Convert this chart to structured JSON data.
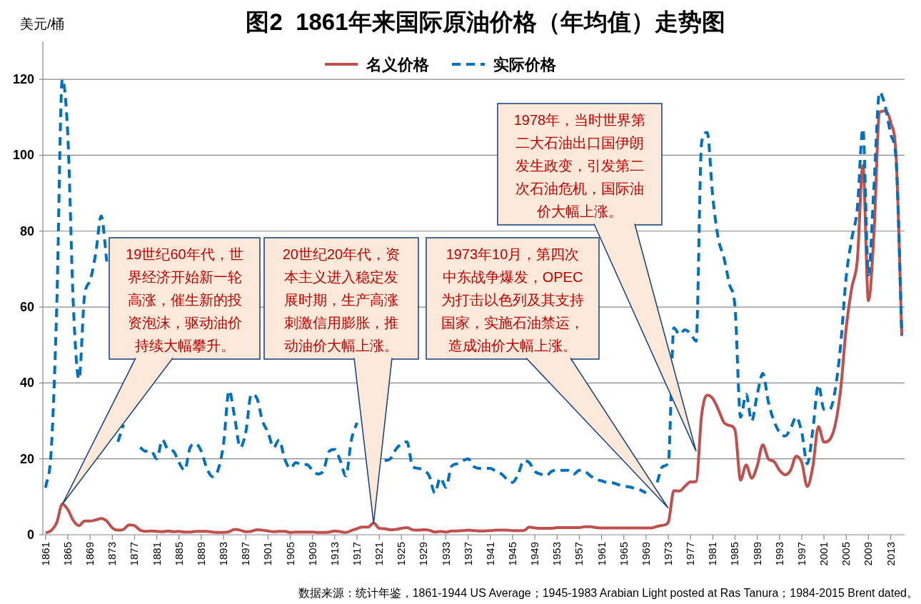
{
  "chart_data": {
    "type": "line",
    "title": "图2  1861年来国际原油价格（年均值）走势图",
    "ylabel": "美元/桶",
    "x": [
      1861,
      1862,
      1863,
      1864,
      1865,
      1866,
      1867,
      1868,
      1869,
      1870,
      1871,
      1872,
      1873,
      1874,
      1875,
      1876,
      1877,
      1878,
      1879,
      1880,
      1881,
      1882,
      1883,
      1884,
      1885,
      1886,
      1887,
      1888,
      1889,
      1890,
      1891,
      1892,
      1893,
      1894,
      1895,
      1896,
      1897,
      1898,
      1899,
      1900,
      1901,
      1902,
      1903,
      1904,
      1905,
      1906,
      1907,
      1908,
      1909,
      1910,
      1911,
      1912,
      1913,
      1914,
      1915,
      1916,
      1917,
      1918,
      1919,
      1920,
      1921,
      1922,
      1923,
      1924,
      1925,
      1926,
      1927,
      1928,
      1929,
      1930,
      1931,
      1932,
      1933,
      1934,
      1935,
      1936,
      1937,
      1938,
      1939,
      1940,
      1941,
      1942,
      1943,
      1944,
      1945,
      1946,
      1947,
      1948,
      1949,
      1950,
      1951,
      1952,
      1953,
      1954,
      1955,
      1956,
      1957,
      1958,
      1959,
      1960,
      1961,
      1962,
      1963,
      1964,
      1965,
      1966,
      1967,
      1968,
      1969,
      1970,
      1971,
      1972,
      1973,
      1974,
      1975,
      1976,
      1977,
      1978,
      1979,
      1980,
      1981,
      1982,
      1983,
      1984,
      1985,
      1986,
      1987,
      1988,
      1989,
      1990,
      1991,
      1992,
      1993,
      1994,
      1995,
      1996,
      1997,
      1998,
      1999,
      2000,
      2001,
      2002,
      2003,
      2004,
      2005,
      2006,
      2007,
      2008,
      2009,
      2010,
      2011,
      2012,
      2013,
      2014,
      2015
    ],
    "series": [
      {
        "name": "名义价格",
        "color": "#c0504d",
        "line_style": "solid",
        "values": [
          0.5,
          1.1,
          3.2,
          8.1,
          6.6,
          3.7,
          2.4,
          3.6,
          3.6,
          3.9,
          4.3,
          3.6,
          1.8,
          1.2,
          1.4,
          2.6,
          2.4,
          1.2,
          0.9,
          1.0,
          0.9,
          0.8,
          1.0,
          0.8,
          0.9,
          0.7,
          0.7,
          0.9,
          0.9,
          0.9,
          0.7,
          0.6,
          0.6,
          0.8,
          1.4,
          1.2,
          0.8,
          0.9,
          1.3,
          1.2,
          1.0,
          0.8,
          0.9,
          0.9,
          0.6,
          0.7,
          0.7,
          0.7,
          0.7,
          0.6,
          0.6,
          0.7,
          1.0,
          0.8,
          0.6,
          1.1,
          1.6,
          2.0,
          2.0,
          3.1,
          1.7,
          1.6,
          1.3,
          1.4,
          1.7,
          1.9,
          1.3,
          1.2,
          1.3,
          1.2,
          0.7,
          0.9,
          0.7,
          1.0,
          1.0,
          1.1,
          1.2,
          1.1,
          1.0,
          1.0,
          1.1,
          1.2,
          1.2,
          1.2,
          1.1,
          1.1,
          1.1,
          2.0,
          1.8,
          1.7,
          1.7,
          1.7,
          1.9,
          1.9,
          1.9,
          1.9,
          1.9,
          2.1,
          2.1,
          1.9,
          1.8,
          1.8,
          1.8,
          1.8,
          1.8,
          1.8,
          1.8,
          1.8,
          1.8,
          1.8,
          2.2,
          2.5,
          3.3,
          11.6,
          11.5,
          12.8,
          13.9,
          14.0,
          31.6,
          36.8,
          35.9,
          33.0,
          29.6,
          28.8,
          27.6,
          14.4,
          18.4,
          14.9,
          18.2,
          23.7,
          20.0,
          19.3,
          17.0,
          15.8,
          17.0,
          20.7,
          19.1,
          12.7,
          18.0,
          28.5,
          24.4,
          25.0,
          28.8,
          38.3,
          54.5,
          65.1,
          72.4,
          97.3,
          61.7,
          79.5,
          111.3,
          111.7,
          108.7,
          99.0,
          52.4
        ]
      },
      {
        "name": "实际价格",
        "color": "#0070c0",
        "line_style": "dashed",
        "values": [
          12.4,
          22,
          60,
          120,
          105,
          60,
          41,
          63,
          67,
          74,
          84,
          72,
          null,
          24.5,
          29,
          null,
          null,
          23,
          22,
          22,
          20,
          25,
          22.5,
          22,
          19,
          17,
          23,
          24,
          22,
          17.5,
          15.3,
          17,
          24,
          38,
          31,
          23,
          27,
          37,
          36,
          30,
          27,
          23,
          25,
          20,
          17.5,
          19,
          18.5,
          18.5,
          17,
          16,
          17,
          22,
          22.5,
          19.5,
          15.5,
          25,
          29.5,
          null,
          null,
          null,
          null,
          19.5,
          20,
          22.5,
          24,
          24.5,
          18,
          17.5,
          17,
          15.5,
          11,
          15,
          12.5,
          18,
          18.7,
          19.5,
          20,
          18,
          17.5,
          17.5,
          17.5,
          16.7,
          16,
          14.6,
          13.8,
          16,
          19.5,
          19,
          16.7,
          16,
          15.5,
          16.7,
          17,
          17,
          17,
          16,
          17,
          16.7,
          15.5,
          14.6,
          14.2,
          13.8,
          13.7,
          13.2,
          12.8,
          12.6,
          12.2,
          11.8,
          11,
          null,
          13.8,
          18,
          19,
          54.5,
          52.8,
          54,
          53,
          51,
          103.5,
          106,
          89,
          78,
          73,
          66,
          60,
          31,
          37,
          30,
          37,
          42.5,
          35,
          30,
          27,
          26,
          28,
          31,
          27,
          18.7,
          27.6,
          39.5,
          33,
          33,
          38,
          50,
          68,
          78,
          86,
          107,
          68.5,
          92,
          116.6,
          113,
          105.6,
          98,
          52.6
        ]
      }
    ],
    "xlim": [
      1860.5,
      2015.5
    ],
    "xticks": [
      1861,
      1865,
      1869,
      1873,
      1877,
      1881,
      1885,
      1889,
      1893,
      1897,
      1901,
      1905,
      1909,
      1913,
      1917,
      1921,
      1925,
      1929,
      1933,
      1937,
      1941,
      1945,
      1949,
      1953,
      1957,
      1961,
      1965,
      1969,
      1973,
      1977,
      1981,
      1985,
      1989,
      1993,
      1997,
      2001,
      2005,
      2009,
      2013
    ],
    "ylim": [
      0,
      130
    ],
    "yticks": [
      0,
      20,
      40,
      60,
      80,
      100,
      120
    ],
    "grid": "y",
    "legend": "top",
    "annotations": [
      {
        "text": "19世纪60年代，世界经济开始新一轮高涨，催生新的投资泡沫，驱动油价持续大幅攀升。",
        "x": 1864,
        "y": 8
      },
      {
        "text": "20世纪20年代，资本主义进入稳定发展时期，生产高涨刺激信用膨胀，推动油价大幅上涨。",
        "x": 1920,
        "y": 3
      },
      {
        "text": "1973年10月，第四次中东战争爆发，OPEC为打击以色列及其支持国家，实施石油禁运，造成油价大幅上涨。",
        "x": 1973,
        "y": 7
      },
      {
        "text": "1978年，当时世界第二大石油出口国伊朗发生政变，引发第二次石油危机，国际油价大幅上涨。",
        "x": 1978,
        "y": 22
      },
      "数据来源：统计年鉴，1861-1944 US Average；1945-1983 Arabian Light posted at Ras Tanura；1984-2015 Brent dated。"
    ]
  }
}
